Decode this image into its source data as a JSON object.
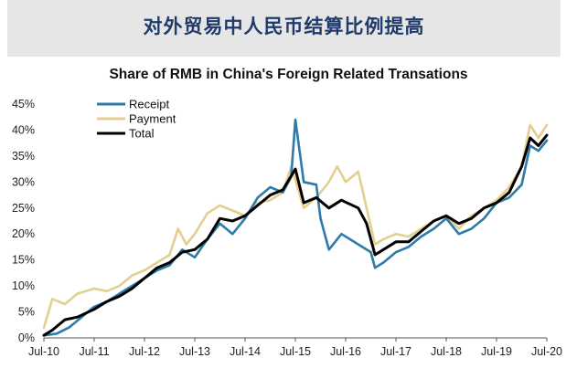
{
  "banner": {
    "title": "对外贸易中人民币结算比例提高"
  },
  "chart_data": {
    "type": "line",
    "title": "Share of RMB in China's Foreign Related Transations",
    "xlabel": "",
    "ylabel": "",
    "x_ticks": [
      "Jul-10",
      "Jul-11",
      "Jul-12",
      "Jul-13",
      "Jul-14",
      "Jul-15",
      "Jul-16",
      "Jul-17",
      "Jul-18",
      "Jul-19",
      "Jul-20"
    ],
    "y_ticks": [
      "0%",
      "5%",
      "10%",
      "15%",
      "20%",
      "25%",
      "30%",
      "35%",
      "40%",
      "45%"
    ],
    "ylim": [
      0,
      45
    ],
    "xlim": [
      "2010-07",
      "2020-07"
    ],
    "grid": false,
    "legend": "top-left",
    "series": [
      {
        "name": "Receipt",
        "color": "#2e7aa8",
        "points": [
          [
            "2010-07",
            0.5
          ],
          [
            "2010-10",
            0.8
          ],
          [
            "2011-01",
            2
          ],
          [
            "2011-04",
            4
          ],
          [
            "2011-07",
            6
          ],
          [
            "2011-10",
            7
          ],
          [
            "2012-01",
            8.5
          ],
          [
            "2012-04",
            10
          ],
          [
            "2012-07",
            11.5
          ],
          [
            "2012-10",
            13
          ],
          [
            "2013-01",
            14
          ],
          [
            "2013-04",
            17
          ],
          [
            "2013-07",
            15.5
          ],
          [
            "2013-10",
            19
          ],
          [
            "2014-01",
            22
          ],
          [
            "2014-04",
            20
          ],
          [
            "2014-07",
            23
          ],
          [
            "2014-10",
            27
          ],
          [
            "2015-01",
            29
          ],
          [
            "2015-04",
            28
          ],
          [
            "2015-06",
            31
          ],
          [
            "2015-07",
            42
          ],
          [
            "2015-09",
            30
          ],
          [
            "2015-12",
            29.5
          ],
          [
            "2016-01",
            23
          ],
          [
            "2016-03",
            17
          ],
          [
            "2016-06",
            20
          ],
          [
            "2016-10",
            18
          ],
          [
            "2017-01",
            16.5
          ],
          [
            "2017-02",
            13.5
          ],
          [
            "2017-04",
            14.5
          ],
          [
            "2017-07",
            16.5
          ],
          [
            "2017-10",
            17.5
          ],
          [
            "2018-01",
            19.5
          ],
          [
            "2018-04",
            21
          ],
          [
            "2018-07",
            23
          ],
          [
            "2018-10",
            20
          ],
          [
            "2019-01",
            21
          ],
          [
            "2019-04",
            23
          ],
          [
            "2019-07",
            26
          ],
          [
            "2019-10",
            27
          ],
          [
            "2020-01",
            29.5
          ],
          [
            "2020-03",
            37
          ],
          [
            "2020-05",
            36
          ],
          [
            "2020-07",
            38
          ]
        ]
      },
      {
        "name": "Payment",
        "color": "#e3cf8f",
        "points": [
          [
            "2010-07",
            2
          ],
          [
            "2010-09",
            7.5
          ],
          [
            "2010-12",
            6.5
          ],
          [
            "2011-03",
            8.5
          ],
          [
            "2011-07",
            9.5
          ],
          [
            "2011-10",
            9
          ],
          [
            "2012-01",
            10
          ],
          [
            "2012-04",
            12
          ],
          [
            "2012-07",
            13
          ],
          [
            "2012-10",
            14.5
          ],
          [
            "2013-01",
            16
          ],
          [
            "2013-03",
            21
          ],
          [
            "2013-05",
            18
          ],
          [
            "2013-07",
            20
          ],
          [
            "2013-10",
            24
          ],
          [
            "2014-01",
            25.5
          ],
          [
            "2014-04",
            24.5
          ],
          [
            "2014-07",
            23.5
          ],
          [
            "2014-10",
            26
          ],
          [
            "2015-01",
            26.5
          ],
          [
            "2015-04",
            28
          ],
          [
            "2015-06",
            33
          ],
          [
            "2015-09",
            25
          ],
          [
            "2015-12",
            27
          ],
          [
            "2016-03",
            30
          ],
          [
            "2016-05",
            33
          ],
          [
            "2016-07",
            30
          ],
          [
            "2016-10",
            32
          ],
          [
            "2016-12",
            25
          ],
          [
            "2017-02",
            18
          ],
          [
            "2017-04",
            19
          ],
          [
            "2017-07",
            20
          ],
          [
            "2017-10",
            19.5
          ],
          [
            "2018-01",
            21
          ],
          [
            "2018-04",
            22.5
          ],
          [
            "2018-07",
            23.5
          ],
          [
            "2018-10",
            21
          ],
          [
            "2019-01",
            23.5
          ],
          [
            "2019-04",
            25
          ],
          [
            "2019-07",
            26.5
          ],
          [
            "2019-10",
            29
          ],
          [
            "2020-01",
            33
          ],
          [
            "2020-03",
            41
          ],
          [
            "2020-05",
            38.5
          ],
          [
            "2020-07",
            41
          ]
        ]
      },
      {
        "name": "Total",
        "color": "#000000",
        "points": [
          [
            "2010-07",
            0.5
          ],
          [
            "2010-09",
            1.5
          ],
          [
            "2010-12",
            3.5
          ],
          [
            "2011-03",
            4
          ],
          [
            "2011-07",
            5.5
          ],
          [
            "2011-10",
            7
          ],
          [
            "2012-01",
            8
          ],
          [
            "2012-04",
            9.5
          ],
          [
            "2012-07",
            11.5
          ],
          [
            "2012-10",
            13.5
          ],
          [
            "2013-01",
            14.5
          ],
          [
            "2013-04",
            16.5
          ],
          [
            "2013-07",
            17
          ],
          [
            "2013-10",
            19
          ],
          [
            "2014-01",
            23
          ],
          [
            "2014-04",
            22.5
          ],
          [
            "2014-07",
            23.5
          ],
          [
            "2014-10",
            25.5
          ],
          [
            "2015-01",
            27.5
          ],
          [
            "2015-04",
            28.5
          ],
          [
            "2015-07",
            32.5
          ],
          [
            "2015-09",
            26
          ],
          [
            "2015-12",
            27
          ],
          [
            "2016-03",
            25
          ],
          [
            "2016-06",
            26.5
          ],
          [
            "2016-10",
            25
          ],
          [
            "2016-12",
            22
          ],
          [
            "2017-02",
            16
          ],
          [
            "2017-04",
            17
          ],
          [
            "2017-07",
            18.5
          ],
          [
            "2017-10",
            18.5
          ],
          [
            "2018-01",
            20.5
          ],
          [
            "2018-04",
            22.5
          ],
          [
            "2018-07",
            23.5
          ],
          [
            "2018-10",
            22
          ],
          [
            "2019-01",
            23
          ],
          [
            "2019-04",
            25
          ],
          [
            "2019-07",
            26
          ],
          [
            "2019-10",
            28
          ],
          [
            "2020-01",
            33
          ],
          [
            "2020-03",
            38.5
          ],
          [
            "2020-05",
            37
          ],
          [
            "2020-07",
            39
          ]
        ]
      }
    ]
  }
}
